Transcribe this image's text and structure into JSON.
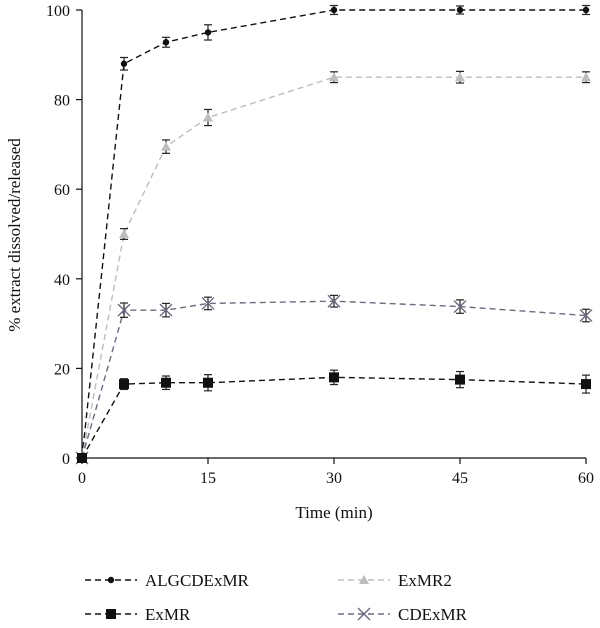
{
  "chart_data": {
    "type": "line",
    "title": "",
    "xlabel": "Time (min)",
    "ylabel": "% extract dissolved/released",
    "xlim": [
      0,
      60
    ],
    "ylim": [
      0,
      100
    ],
    "xticks": [
      0,
      15,
      30,
      45,
      60
    ],
    "yticks": [
      0,
      20,
      40,
      60,
      80,
      100
    ],
    "grid": false,
    "legend_position": "bottom",
    "series": [
      {
        "name": "ALGCDExMR",
        "marker": "circle",
        "color": "#111111",
        "x": [
          0,
          5,
          10,
          15,
          30,
          45,
          60
        ],
        "y": [
          0,
          88,
          92.8,
          95,
          100,
          100,
          100
        ],
        "err": [
          0,
          1.4,
          1.1,
          1.7,
          1.0,
          0.9,
          1.0
        ]
      },
      {
        "name": "ExMR2",
        "marker": "triangle",
        "color": "#bdbdbd",
        "x": [
          0,
          5,
          10,
          15,
          30,
          45,
          60
        ],
        "y": [
          0,
          50,
          69.5,
          76,
          85,
          85,
          85
        ],
        "err": [
          0,
          1.2,
          1.5,
          1.8,
          1.2,
          1.3,
          1.2
        ]
      },
      {
        "name": "CDExMR",
        "marker": "x",
        "color": "#6e6a80",
        "x": [
          0,
          5,
          10,
          15,
          30,
          45,
          60
        ],
        "y": [
          0,
          33,
          33,
          34.5,
          35,
          33.8,
          31.8
        ],
        "err": [
          0,
          1.6,
          1.5,
          1.4,
          1.3,
          1.5,
          1.4
        ]
      },
      {
        "name": "ExMR",
        "marker": "square",
        "color": "#111111",
        "x": [
          0,
          5,
          10,
          15,
          30,
          45,
          60
        ],
        "y": [
          0,
          16.5,
          16.8,
          16.8,
          18,
          17.5,
          16.5
        ],
        "err": [
          0,
          1.2,
          1.5,
          1.8,
          1.6,
          1.8,
          2.0
        ]
      }
    ],
    "legend": [
      {
        "name": "ALGCDExMR",
        "series_index": 0
      },
      {
        "name": "ExMR2",
        "series_index": 1
      },
      {
        "name": "ExMR",
        "series_index": 3
      },
      {
        "name": "CDExMR",
        "series_index": 2
      }
    ]
  }
}
